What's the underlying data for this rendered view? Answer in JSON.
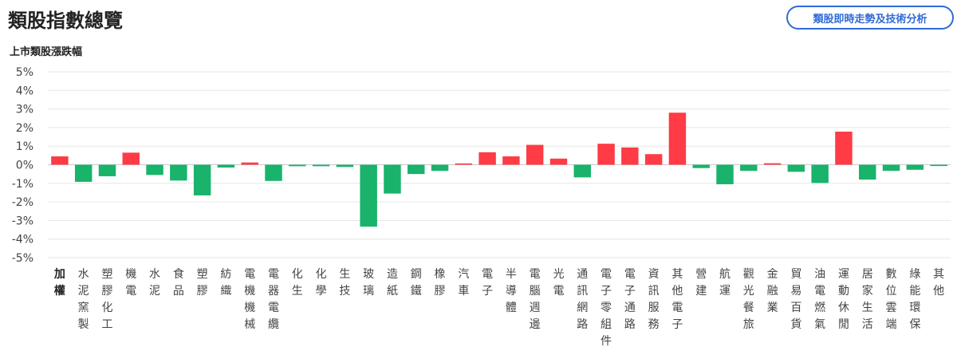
{
  "header": {
    "title": "類股指數總覽",
    "analysis_button": "類股即時走勢及技術分析"
  },
  "chart_data": {
    "type": "bar",
    "title": "上市類股漲跌幅",
    "ylim": [
      -5,
      5
    ],
    "yticks": [
      "5%",
      "4%",
      "3%",
      "2%",
      "1%",
      "0%",
      "-1%",
      "-2%",
      "-3%",
      "-4%",
      "-5%"
    ],
    "ytick_values": [
      5,
      4,
      3,
      2,
      1,
      0,
      -1,
      -2,
      -3,
      -4,
      -5
    ],
    "grid": true,
    "colors": {
      "up": "#ff3b45",
      "down": "#19b36b"
    },
    "categories": [
      "加權",
      "水泥窯製",
      "塑膠化工",
      "機電",
      "水泥",
      "食品",
      "塑膠",
      "紡織",
      "電機機械",
      "電器電纜",
      "化生",
      "化學",
      "生技",
      "玻璃",
      "造紙",
      "鋼鐵",
      "橡膠",
      "汽車",
      "電子",
      "半導體",
      "電腦週邊",
      "光電",
      "通訊網路",
      "電子零組件",
      "電子通路",
      "資訊服務",
      "其他電子",
      "營建",
      "航運",
      "觀光餐旅",
      "金融業",
      "貿易百貨",
      "油電燃氣",
      "運動休閒",
      "居家生活",
      "數位雲端",
      "綠能環保",
      "其他"
    ],
    "values": [
      0.45,
      -0.92,
      -0.62,
      0.65,
      -0.55,
      -0.85,
      -1.65,
      -0.15,
      0.12,
      -0.87,
      -0.08,
      -0.08,
      -0.12,
      -3.33,
      -1.55,
      -0.5,
      -0.33,
      0.07,
      0.67,
      0.45,
      1.07,
      0.33,
      -0.68,
      1.13,
      0.93,
      0.57,
      2.8,
      -0.18,
      -1.05,
      -0.33,
      0.08,
      -0.38,
      -0.98,
      1.78,
      -0.8,
      -0.33,
      -0.27,
      -0.07
    ]
  }
}
